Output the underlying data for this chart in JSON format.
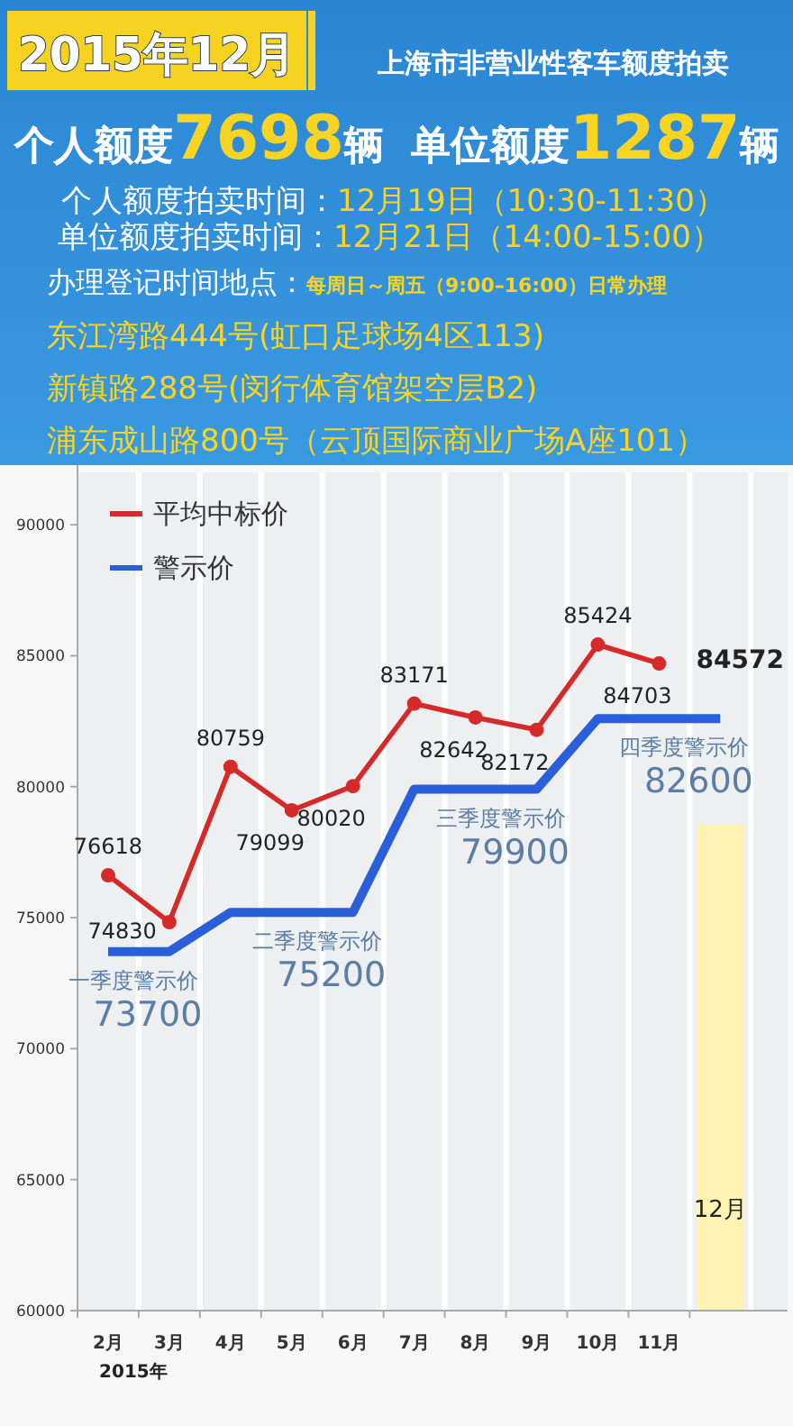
{
  "chart_data": [
    {
      "type": "other",
      "title": "2015年12月",
      "subtitle": "上海市非营业性客车额度拍卖",
      "annotations": [
        "个人额度7698辆",
        "单位额度1287辆",
        "个人额度拍卖时间：12月19日（10:30-11:30）",
        "单位额度拍卖时间：12月21日（14:00-15:00）",
        "办理登记时间地点：每周日～周五（9:00–16:00）日常办理",
        "东江湾路444号(虹口足球场4区113)",
        "新镇路288号(闵行体育馆架空层B2)",
        "浦东成山路800号（云顶国际商业广场A座101）"
      ]
    },
    {
      "type": "line",
      "categories": [
        "2月",
        "3月",
        "4月",
        "5月",
        "6月",
        "7月",
        "8月",
        "9月",
        "10月",
        "11月",
        "12月"
      ],
      "series": [
        {
          "name": "平均中标价",
          "color": "#d42a2a",
          "values": [
            76618,
            74830,
            80759,
            79099,
            80020,
            83171,
            82642,
            82172,
            85424,
            84703,
            null
          ],
          "value_labels": [
            "76618",
            "74830",
            "80759",
            "79099",
            "80020",
            "83171",
            "82642",
            "82172",
            "85424",
            "84703",
            null
          ]
        },
        {
          "name": "警示价",
          "color": "#2b5fd9",
          "marker": "none",
          "values": [
            73700,
            73700,
            75200,
            75200,
            75200,
            79900,
            79900,
            79900,
            82600,
            82600,
            82600
          ]
        }
      ],
      "ylim": [
        60000,
        92000
      ],
      "yticks": [
        60000,
        65000,
        70000,
        75000,
        80000,
        85000,
        90000
      ],
      "grid": "x",
      "legend": "top left",
      "marker": "circle",
      "bands": [
        {
          "axis": "x",
          "from": "12月",
          "to": "12月",
          "color": "#fff3b3"
        }
      ],
      "annotations": [
        "2015年",
        "84572",
        {
          "text": "一季度警示价",
          "x": "2月",
          "y": 73700
        },
        {
          "text": "73700",
          "x": "2月",
          "y": 73700
        },
        {
          "text": "二季度警示价",
          "x": "5月",
          "y": 75200
        },
        {
          "text": "75200",
          "x": "5月",
          "y": 75200
        },
        {
          "text": "三季度警示价",
          "x": "8月",
          "y": 79900
        },
        {
          "text": "79900",
          "x": "8月",
          "y": 79900
        },
        {
          "text": "四季度警示价",
          "x": "11月",
          "y": 82600
        },
        {
          "text": "82600",
          "x": "11月",
          "y": 82600
        }
      ]
    }
  ]
}
